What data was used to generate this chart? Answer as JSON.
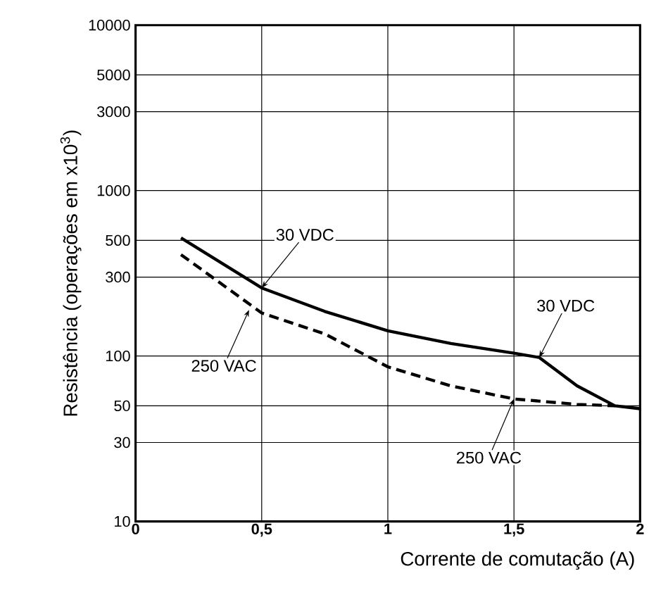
{
  "chart_data": {
    "type": "line",
    "xlabel": "Corrente de comutação (A)",
    "ylabel": "Resistência (operações em x10$^{3}$)",
    "series": [
      {
        "color": "#000000",
        "line_style": "solid",
        "x": [
          0.18,
          0.5,
          0.75,
          1.0,
          1.25,
          1.5,
          1.6,
          1.75,
          1.9,
          2.0
        ],
        "values": [
          518,
          258,
          186,
          142,
          119,
          104,
          98,
          66,
          50,
          48
        ]
      },
      {
        "color": "#000000",
        "line_style": "dashed",
        "x": [
          0.18,
          0.5,
          0.75,
          1.0,
          1.25,
          1.5,
          1.75,
          1.9
        ],
        "values": [
          410,
          182,
          136,
          86,
          66,
          55,
          51,
          50
        ]
      }
    ],
    "annotations": [
      {
        "text": "30 VDC",
        "x": 0.5,
        "y": 258
      },
      {
        "text": "30 VDC",
        "x": 1.6,
        "y": 98
      },
      {
        "text": "250 VAC",
        "x": 0.45,
        "y": 190
      },
      {
        "text": "250 VAC",
        "x": 1.5,
        "y": 55
      }
    ],
    "log": "y",
    "grid": true,
    "marker": "none",
    "xlim": [
      0,
      2
    ],
    "ylim": [
      10,
      10000
    ],
    "xticks": [
      0,
      {
        "value": 0.5,
        "label": "0,5"
      },
      1,
      {
        "value": 1.5,
        "label": "1,5"
      },
      2
    ],
    "yticks": [
      10,
      30,
      50,
      100,
      300,
      500,
      1000,
      3000,
      5000,
      10000
    ]
  }
}
